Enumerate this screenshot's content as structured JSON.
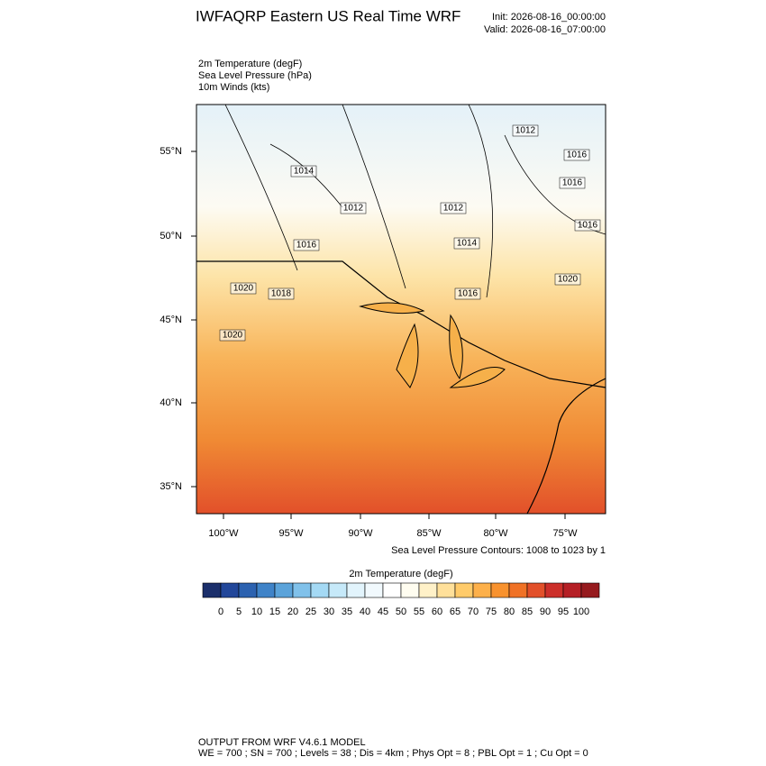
{
  "header": {
    "title": "IWFAQRP Eastern US Real Time WRF",
    "init": "Init: 2026-08-16_00:00:00",
    "valid": "Valid: 2026-08-16_07:00:00"
  },
  "fields": [
    "2m Temperature   (degF)",
    "Sea Level Pressure   (hPa)",
    "10m Winds   (kts)"
  ],
  "map": {
    "lat_labels": [
      "55°N",
      "50°N",
      "45°N",
      "40°N",
      "35°N"
    ],
    "lon_labels": [
      "100°W",
      "95°W",
      "90°W",
      "85°W",
      "80°W",
      "75°W"
    ],
    "contour_labels": [
      "1012",
      "1014",
      "1012",
      "1012",
      "1014",
      "1016",
      "1016",
      "1016",
      "1016",
      "1020",
      "1016",
      "1018",
      "1020",
      "1020"
    ]
  },
  "contour_note": "Sea Level Pressure Contours: 1008 to 1023 by 1",
  "colorbar": {
    "title": "2m Temperature  (degF)",
    "labels": [
      0,
      5,
      10,
      15,
      20,
      25,
      30,
      35,
      40,
      45,
      50,
      55,
      60,
      65,
      70,
      75,
      80,
      85,
      90,
      95,
      100
    ],
    "colors": [
      "#1b2f6b",
      "#22479a",
      "#2c62b0",
      "#3f83c8",
      "#5ba3da",
      "#80c1ea",
      "#a4d9f4",
      "#c6e9f9",
      "#e2f4fc",
      "#f1f9fd",
      "#ffffff",
      "#fffdf0",
      "#fff1c8",
      "#ffe09a",
      "#ffcb6a",
      "#fdb04a",
      "#f8922e",
      "#f07226",
      "#e2502a",
      "#cc2f2a",
      "#b51f25",
      "#961a1e"
    ]
  },
  "footer": {
    "line1": "OUTPUT FROM WRF V4.6.1 MODEL",
    "line2": "WE = 700 ; SN = 700 ; Levels = 38 ; Dis = 4km ; Phys Opt = 8 ; PBL Opt = 1 ; Cu Opt = 0"
  }
}
